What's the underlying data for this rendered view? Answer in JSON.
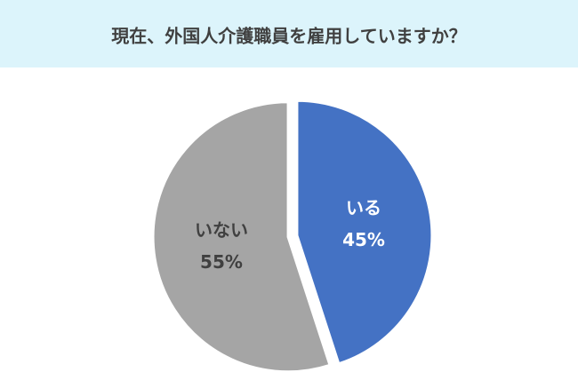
{
  "chart_data": {
    "type": "pie",
    "title": "現在、外国人介護職員を雇用していますか？",
    "categories": [
      "いる",
      "いない"
    ],
    "values": [
      45,
      55
    ],
    "value_labels": [
      "45%",
      "55%"
    ],
    "colors": [
      "#4472c4",
      "#a5a5a5"
    ],
    "label_colors": [
      "#ffffff",
      "#404040"
    ]
  }
}
